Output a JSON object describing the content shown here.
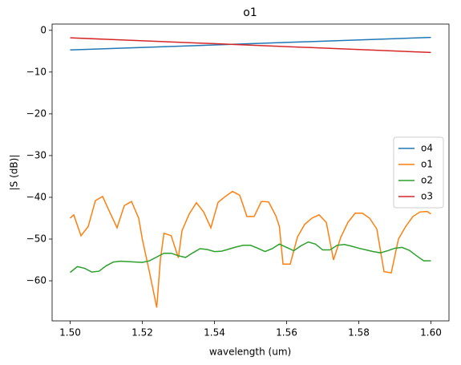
{
  "chart_data": {
    "type": "line",
    "title": "o1",
    "xlabel": "wavelength (um)",
    "ylabel": "|S (dB)|",
    "xlim": [
      1.495,
      1.605
    ],
    "ylim": [
      -69.6,
      1.5
    ],
    "xticks": [
      {
        "value": 1.5,
        "label": "1.50"
      },
      1.52,
      1.54,
      1.56,
      1.58,
      {
        "value": 1.6,
        "label": "1.60"
      }
    ],
    "yticks": [
      {
        "value": 0,
        "label": "0"
      },
      {
        "value": -10,
        "label": "−10"
      },
      {
        "value": -20,
        "label": "−20"
      },
      {
        "value": -30,
        "label": "−30"
      },
      {
        "value": -40,
        "label": "−40"
      },
      {
        "value": -50,
        "label": "−50"
      },
      {
        "value": -60,
        "label": "−60"
      }
    ],
    "legend": "center right",
    "series": [
      {
        "name": "o4",
        "color": "#1f77b4",
        "x": [
          1.5,
          1.6
        ],
        "values": [
          -4.7,
          -1.7
        ]
      },
      {
        "name": "o1",
        "color": "#ff7f0e",
        "x": [
          1.5,
          1.501,
          1.503,
          1.505,
          1.507,
          1.509,
          1.511,
          1.513,
          1.515,
          1.517,
          1.519,
          1.52,
          1.522,
          1.524,
          1.525,
          1.526,
          1.528,
          1.53,
          1.531,
          1.533,
          1.535,
          1.537,
          1.539,
          1.541,
          1.543,
          1.545,
          1.547,
          1.549,
          1.551,
          1.553,
          1.555,
          1.557,
          1.558,
          1.559,
          1.561,
          1.563,
          1.565,
          1.567,
          1.569,
          1.571,
          1.573,
          1.575,
          1.577,
          1.579,
          1.581,
          1.583,
          1.585,
          1.587,
          1.589,
          1.591,
          1.593,
          1.595,
          1.597,
          1.599,
          1.6
        ],
        "values": [
          -45,
          -44.2,
          -49.2,
          -47,
          -40.8,
          -39.8,
          -43.6,
          -47.3,
          -42,
          -41,
          -45,
          -50,
          -58,
          -66.4,
          -55,
          -48.6,
          -49.2,
          -54.5,
          -48,
          -44,
          -41.3,
          -43.5,
          -47.3,
          -41.2,
          -39.8,
          -38.6,
          -39.5,
          -44.6,
          -44.6,
          -41,
          -41.1,
          -44.4,
          -47,
          -56,
          -56,
          -49.5,
          -46.5,
          -45,
          -44.2,
          -46,
          -55,
          -49.6,
          -46,
          -43.8,
          -43.8,
          -45,
          -47.6,
          -57.8,
          -58.1,
          -50,
          -47,
          -44.6,
          -43.5,
          -43.4,
          -44
        ]
      },
      {
        "name": "o2",
        "color": "#2ca02c",
        "x": [
          1.5,
          1.502,
          1.504,
          1.506,
          1.508,
          1.51,
          1.512,
          1.514,
          1.516,
          1.518,
          1.52,
          1.522,
          1.524,
          1.526,
          1.528,
          1.53,
          1.532,
          1.534,
          1.536,
          1.538,
          1.54,
          1.542,
          1.544,
          1.546,
          1.548,
          1.55,
          1.552,
          1.554,
          1.556,
          1.558,
          1.56,
          1.562,
          1.564,
          1.566,
          1.568,
          1.57,
          1.572,
          1.574,
          1.576,
          1.578,
          1.58,
          1.582,
          1.584,
          1.586,
          1.588,
          1.59,
          1.592,
          1.594,
          1.596,
          1.598,
          1.6
        ],
        "values": [
          -58,
          -56.6,
          -57,
          -57.9,
          -57.7,
          -56.4,
          -55.5,
          -55.3,
          -55.4,
          -55.5,
          -55.6,
          -55.2,
          -54.3,
          -53.4,
          -53.4,
          -54,
          -54.4,
          -53.3,
          -52.3,
          -52.5,
          -53,
          -52.9,
          -52.4,
          -51.9,
          -51.5,
          -51.5,
          -52.2,
          -53,
          -52.3,
          -51.2,
          -52,
          -52.8,
          -51.6,
          -50.7,
          -51.2,
          -52.6,
          -52.6,
          -51.5,
          -51.3,
          -51.7,
          -52.2,
          -52.6,
          -53,
          -53.3,
          -52.8,
          -52.2,
          -52,
          -52.7,
          -54,
          -55.2,
          -55.2
        ]
      },
      {
        "name": "o3",
        "color": "#d62728",
        "x": [
          1.5,
          1.6
        ],
        "values": [
          -1.8,
          -5.3
        ]
      }
    ]
  }
}
